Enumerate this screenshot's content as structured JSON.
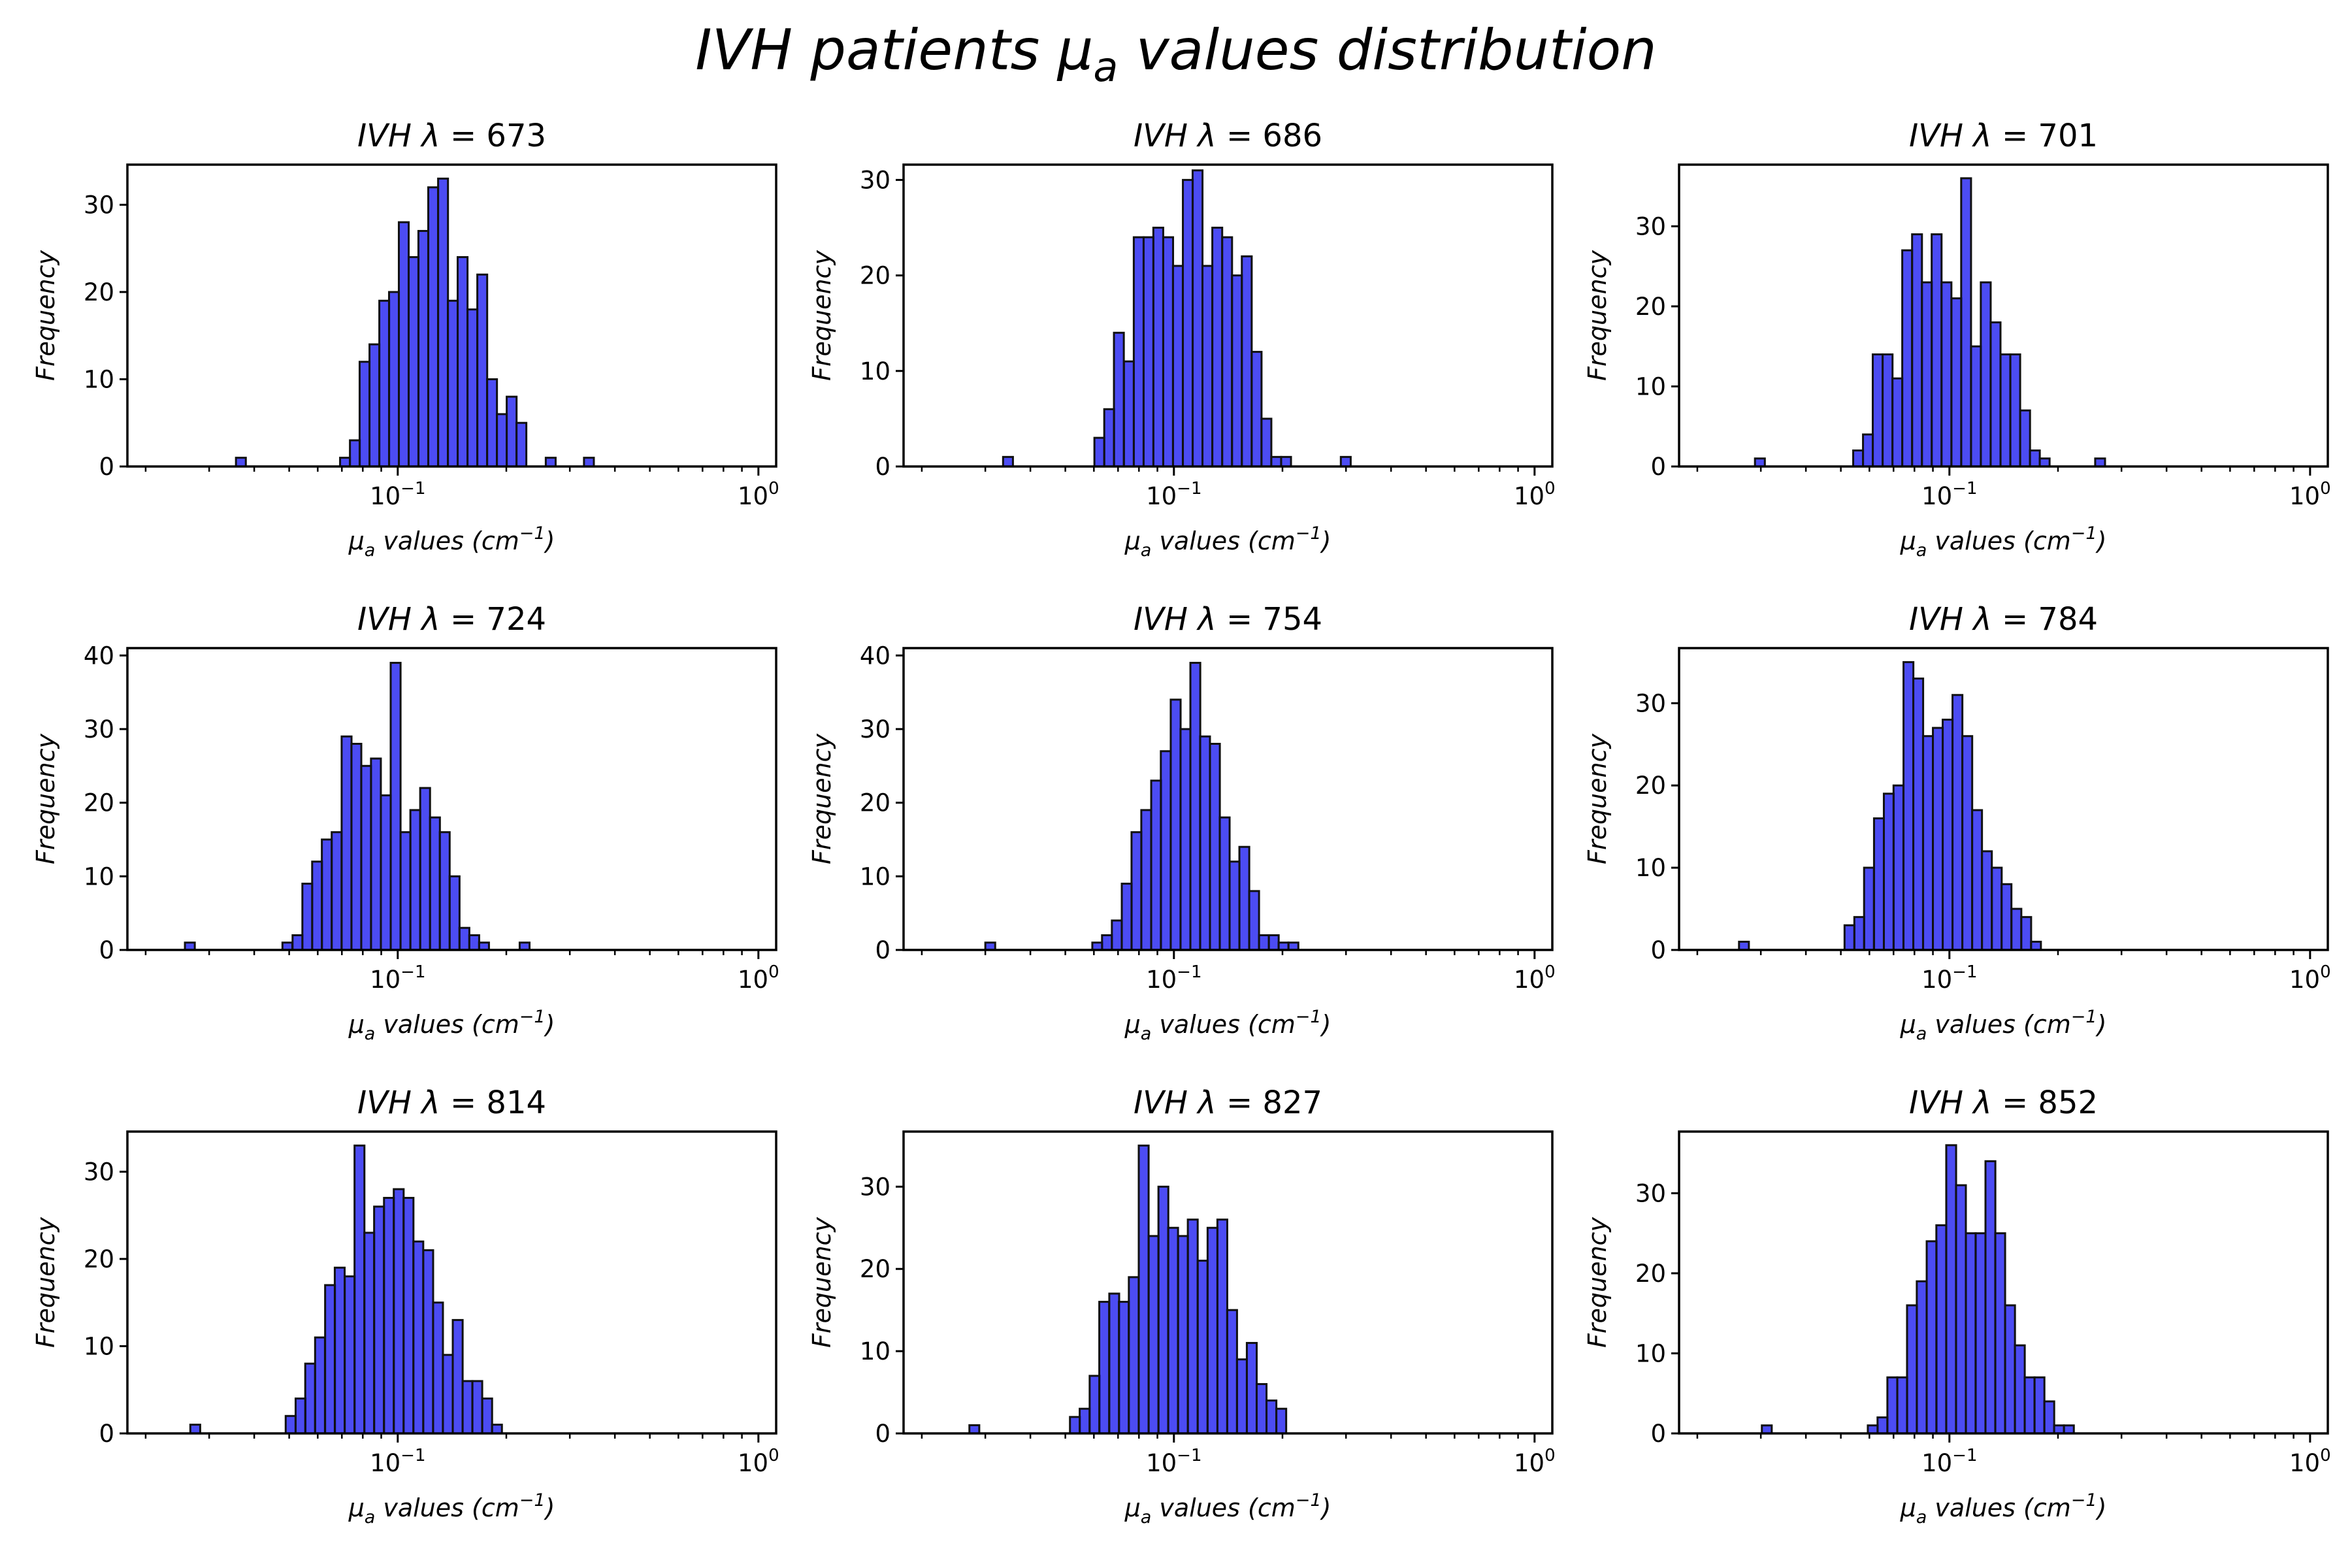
{
  "suptitle": {
    "text": "IVH patients ",
    "mu": "μ",
    "sub": "a",
    "rest": " values distribution"
  },
  "colors": {
    "bar_fill": "#0000ee",
    "bar_edge": "#111111"
  },
  "chart_data": [
    {
      "type": "bar",
      "title_prefix": "IVH",
      "lambda": "λ",
      "title_value": "673",
      "xlabel": "μa values (cm⁻¹)",
      "ylabel": "Frequency",
      "xscale": "log",
      "xlim": [
        0.0178,
        1.12
      ],
      "ylim": [
        0,
        34.6
      ],
      "yticks": [
        0,
        10,
        20,
        30
      ],
      "xticks": [
        "10−1",
        "100"
      ],
      "bins": [
        [
          0.0356,
          1
        ],
        [
          0.0692,
          1
        ],
        [
          0.0737,
          3
        ],
        [
          0.0784,
          12
        ],
        [
          0.0835,
          14
        ],
        [
          0.0889,
          19
        ],
        [
          0.0946,
          20
        ],
        [
          0.1007,
          28
        ],
        [
          0.1072,
          24
        ],
        [
          0.1141,
          27
        ],
        [
          0.1215,
          32
        ],
        [
          0.1294,
          33
        ],
        [
          0.1377,
          19
        ],
        [
          0.1466,
          24
        ],
        [
          0.1561,
          18
        ],
        [
          0.1662,
          22
        ],
        [
          0.1769,
          10
        ],
        [
          0.1883,
          6
        ],
        [
          0.2005,
          8
        ],
        [
          0.2134,
          5
        ],
        [
          0.2573,
          1
        ],
        [
          0.3284,
          1
        ]
      ]
    },
    {
      "type": "bar",
      "title_prefix": "IVH",
      "lambda": "λ",
      "title_value": "686",
      "xlabel": "μa values (cm⁻¹)",
      "ylabel": "Frequency",
      "xscale": "log",
      "xlim": [
        0.0178,
        1.12
      ],
      "ylim": [
        0,
        31.6
      ],
      "yticks": [
        0,
        10,
        20,
        30
      ],
      "xticks": [
        "10−1",
        "100"
      ],
      "bins": [
        [
          0.0336,
          1
        ],
        [
          0.0602,
          3
        ],
        [
          0.0641,
          6
        ],
        [
          0.0682,
          14
        ],
        [
          0.0727,
          11
        ],
        [
          0.0774,
          24
        ],
        [
          0.0824,
          24
        ],
        [
          0.0877,
          25
        ],
        [
          0.0934,
          24
        ],
        [
          0.0994,
          21
        ],
        [
          0.1059,
          30
        ],
        [
          0.1127,
          31
        ],
        [
          0.12,
          21
        ],
        [
          0.1278,
          25
        ],
        [
          0.1361,
          24
        ],
        [
          0.1449,
          20
        ],
        [
          0.1543,
          22
        ],
        [
          0.1643,
          12
        ],
        [
          0.1749,
          5
        ],
        [
          0.1862,
          1
        ],
        [
          0.1983,
          1
        ],
        [
          0.2903,
          1
        ]
      ]
    },
    {
      "type": "bar",
      "title_prefix": "IVH",
      "lambda": "λ",
      "title_value": "701",
      "xlabel": "μa values (cm⁻¹)",
      "ylabel": "Frequency",
      "xscale": "log",
      "xlim": [
        0.0178,
        1.12
      ],
      "ylim": [
        0,
        37.7
      ],
      "yticks": [
        0,
        10,
        20,
        30
      ],
      "xticks": [
        "10−1",
        "100"
      ],
      "bins": [
        [
          0.0289,
          1
        ],
        [
          0.0541,
          2
        ],
        [
          0.0576,
          4
        ],
        [
          0.0613,
          14
        ],
        [
          0.0653,
          14
        ],
        [
          0.0695,
          11
        ],
        [
          0.074,
          27
        ],
        [
          0.0788,
          29
        ],
        [
          0.0839,
          23
        ],
        [
          0.0893,
          29
        ],
        [
          0.0951,
          23
        ],
        [
          0.1013,
          21
        ],
        [
          0.1078,
          36
        ],
        [
          0.1148,
          15
        ],
        [
          0.1222,
          23
        ],
        [
          0.1301,
          18
        ],
        [
          0.1386,
          14
        ],
        [
          0.1475,
          14
        ],
        [
          0.1571,
          7
        ],
        [
          0.1672,
          2
        ],
        [
          0.178,
          1
        ],
        [
          0.2536,
          1
        ]
      ]
    },
    {
      "type": "bar",
      "title_prefix": "IVH",
      "lambda": "λ",
      "title_value": "724",
      "xlabel": "μa values (cm⁻¹)",
      "ylabel": "Frequency",
      "xscale": "log",
      "xlim": [
        0.0178,
        1.12
      ],
      "ylim": [
        0,
        41
      ],
      "yticks": [
        0,
        10,
        20,
        30,
        40
      ],
      "xticks": [
        "10−1",
        "100"
      ],
      "bins": [
        [
          0.0257,
          1
        ],
        [
          0.0479,
          1
        ],
        [
          0.0511,
          2
        ],
        [
          0.0544,
          9
        ],
        [
          0.0579,
          12
        ],
        [
          0.0616,
          15
        ],
        [
          0.0656,
          16
        ],
        [
          0.0699,
          29
        ],
        [
          0.0744,
          28
        ],
        [
          0.0792,
          25
        ],
        [
          0.0843,
          26
        ],
        [
          0.0898,
          21
        ],
        [
          0.0956,
          39
        ],
        [
          0.1018,
          16
        ],
        [
          0.1084,
          19
        ],
        [
          0.1154,
          22
        ],
        [
          0.1229,
          18
        ],
        [
          0.1308,
          16
        ],
        [
          0.1393,
          10
        ],
        [
          0.1483,
          3
        ],
        [
          0.1579,
          2
        ],
        [
          0.1681,
          1
        ],
        [
          0.2178,
          1
        ]
      ]
    },
    {
      "type": "bar",
      "title_prefix": "IVH",
      "lambda": "λ",
      "title_value": "754",
      "xlabel": "μa values (cm⁻¹)",
      "ylabel": "Frequency",
      "xscale": "log",
      "xlim": [
        0.0178,
        1.12
      ],
      "ylim": [
        0,
        41
      ],
      "yticks": [
        0,
        10,
        20,
        30,
        40
      ],
      "xticks": [
        "10−1",
        "100"
      ],
      "bins": [
        [
          0.03,
          1
        ],
        [
          0.0594,
          1
        ],
        [
          0.0632,
          2
        ],
        [
          0.0673,
          4
        ],
        [
          0.0717,
          9
        ],
        [
          0.0763,
          16
        ],
        [
          0.0812,
          19
        ],
        [
          0.0865,
          23
        ],
        [
          0.092,
          27
        ],
        [
          0.098,
          34
        ],
        [
          0.1043,
          30
        ],
        [
          0.1111,
          39
        ],
        [
          0.1182,
          29
        ],
        [
          0.1259,
          28
        ],
        [
          0.134,
          18
        ],
        [
          0.1427,
          12
        ],
        [
          0.1519,
          14
        ],
        [
          0.1617,
          8
        ],
        [
          0.1722,
          2
        ],
        [
          0.1833,
          2
        ],
        [
          0.1951,
          1
        ],
        [
          0.2078,
          1
        ]
      ]
    },
    {
      "type": "bar",
      "title_prefix": "IVH",
      "lambda": "λ",
      "title_value": "784",
      "xlabel": "μa values (cm⁻¹)",
      "ylabel": "Frequency",
      "xscale": "log",
      "xlim": [
        0.0178,
        1.12
      ],
      "ylim": [
        0,
        36.7
      ],
      "yticks": [
        0,
        10,
        20,
        30
      ],
      "xticks": [
        "10−1",
        "100"
      ],
      "bins": [
        [
          0.0261,
          1
        ],
        [
          0.0512,
          3
        ],
        [
          0.0545,
          4
        ],
        [
          0.058,
          10
        ],
        [
          0.0618,
          16
        ],
        [
          0.0658,
          19
        ],
        [
          0.07,
          20
        ],
        [
          0.0746,
          35
        ],
        [
          0.0794,
          33
        ],
        [
          0.0845,
          26
        ],
        [
          0.09,
          27
        ],
        [
          0.0958,
          28
        ],
        [
          0.102,
          31
        ],
        [
          0.1086,
          26
        ],
        [
          0.1156,
          17
        ],
        [
          0.1231,
          12
        ],
        [
          0.1311,
          10
        ],
        [
          0.1395,
          8
        ],
        [
          0.1486,
          5
        ],
        [
          0.1582,
          4
        ],
        [
          0.1684,
          1
        ]
      ]
    },
    {
      "type": "bar",
      "title_prefix": "IVH",
      "lambda": "λ",
      "title_value": "814",
      "xlabel": "μa values (cm⁻¹)",
      "ylabel": "Frequency",
      "xscale": "log",
      "xlim": [
        0.0178,
        1.12
      ],
      "ylim": [
        0,
        34.6
      ],
      "yticks": [
        0,
        10,
        20,
        30
      ],
      "xticks": [
        "10−1",
        "100"
      ],
      "bins": [
        [
          0.0266,
          1
        ],
        [
          0.0489,
          2
        ],
        [
          0.0521,
          4
        ],
        [
          0.0554,
          8
        ],
        [
          0.059,
          11
        ],
        [
          0.0629,
          17
        ],
        [
          0.0669,
          19
        ],
        [
          0.0713,
          18
        ],
        [
          0.0759,
          33
        ],
        [
          0.0808,
          23
        ],
        [
          0.086,
          26
        ],
        [
          0.0916,
          27
        ],
        [
          0.0975,
          28
        ],
        [
          0.1038,
          27
        ],
        [
          0.1105,
          22
        ],
        [
          0.1177,
          21
        ],
        [
          0.1253,
          15
        ],
        [
          0.1334,
          9
        ],
        [
          0.1421,
          13
        ],
        [
          0.1513,
          6
        ],
        [
          0.161,
          6
        ],
        [
          0.1715,
          4
        ],
        [
          0.1826,
          1
        ]
      ]
    },
    {
      "type": "bar",
      "title_prefix": "IVH",
      "lambda": "λ",
      "title_value": "827",
      "xlabel": "μa values (cm⁻¹)",
      "ylabel": "Frequency",
      "xscale": "log",
      "xlim": [
        0.0178,
        1.12
      ],
      "ylim": [
        0,
        36.7
      ],
      "yticks": [
        0,
        10,
        20,
        30
      ],
      "xticks": [
        "10−1",
        "100"
      ],
      "bins": [
        [
          0.0271,
          1
        ],
        [
          0.0515,
          2
        ],
        [
          0.0548,
          3
        ],
        [
          0.0584,
          7
        ],
        [
          0.0621,
          16
        ],
        [
          0.0662,
          17
        ],
        [
          0.0704,
          16
        ],
        [
          0.075,
          19
        ],
        [
          0.0799,
          35
        ],
        [
          0.0851,
          24
        ],
        [
          0.0906,
          30
        ],
        [
          0.0964,
          25
        ],
        [
          0.1027,
          24
        ],
        [
          0.1093,
          26
        ],
        [
          0.1164,
          21
        ],
        [
          0.124,
          25
        ],
        [
          0.132,
          26
        ],
        [
          0.1405,
          15
        ],
        [
          0.1496,
          9
        ],
        [
          0.1593,
          11
        ],
        [
          0.1696,
          6
        ],
        [
          0.1806,
          4
        ],
        [
          0.1923,
          3
        ]
      ]
    },
    {
      "type": "bar",
      "title_prefix": "IVH",
      "lambda": "λ",
      "title_value": "852",
      "xlabel": "μa values (cm⁻¹)",
      "ylabel": "Frequency",
      "xscale": "log",
      "xlim": [
        0.0178,
        1.12
      ],
      "ylim": [
        0,
        37.7
      ],
      "yticks": [
        0,
        10,
        20,
        30
      ],
      "xticks": [
        "10−1",
        "100"
      ],
      "bins": [
        [
          0.0302,
          1
        ],
        [
          0.0594,
          1
        ],
        [
          0.0632,
          2
        ],
        [
          0.0673,
          7
        ],
        [
          0.0717,
          7
        ],
        [
          0.0763,
          16
        ],
        [
          0.0812,
          19
        ],
        [
          0.0865,
          24
        ],
        [
          0.092,
          26
        ],
        [
          0.098,
          36
        ],
        [
          0.1043,
          31
        ],
        [
          0.1111,
          25
        ],
        [
          0.1182,
          25
        ],
        [
          0.1259,
          34
        ],
        [
          0.134,
          25
        ],
        [
          0.1427,
          16
        ],
        [
          0.1519,
          11
        ],
        [
          0.1617,
          7
        ],
        [
          0.1722,
          7
        ],
        [
          0.1833,
          4
        ],
        [
          0.1951,
          1
        ],
        [
          0.2078,
          1
        ]
      ]
    }
  ]
}
